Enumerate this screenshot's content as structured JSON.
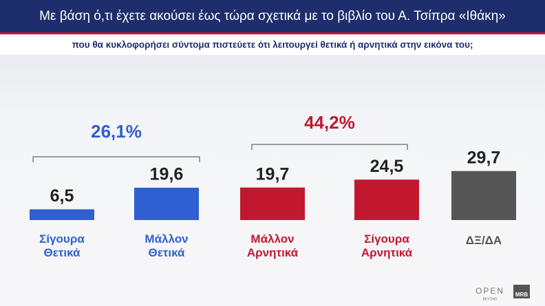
{
  "chart_data": {
    "type": "bar",
    "title": "Με βάση ό,τι έχετε ακούσει έως τώρα σχετικά με το βιβλίο του Α. Τσίπρα «Ιθάκη»",
    "subtitle": "που θα κυκλοφορήσει σύντομα πιστεύετε ότι λειτουργεί θετικά ή αρνητικά στην εικόνα του;",
    "categories": [
      "Σίγουρα Θετικά",
      "Μάλλον Θετικά",
      "Μάλλον Αρνητικά",
      "Σίγουρα Αρνητικά",
      "ΔΞ/ΔΑ"
    ],
    "values": [
      6.5,
      19.6,
      19.7,
      24.5,
      29.7
    ],
    "value_labels": [
      "6,5",
      "19,6",
      "19,7",
      "24,5",
      "29,7"
    ],
    "colors": [
      "#2f5fd0",
      "#2f5fd0",
      "#c2182f",
      "#c2182f",
      "#555555"
    ],
    "annotations": [
      {
        "value": 26.1,
        "label": "26,1%",
        "color": "#2f5fd0"
      },
      {
        "value": 44.2,
        "label": "44,2%",
        "color": "#c2182f"
      }
    ]
  },
  "footer": {
    "logo": "OPEN",
    "logo_sub": "BEYOND",
    "brand": "MRB"
  }
}
